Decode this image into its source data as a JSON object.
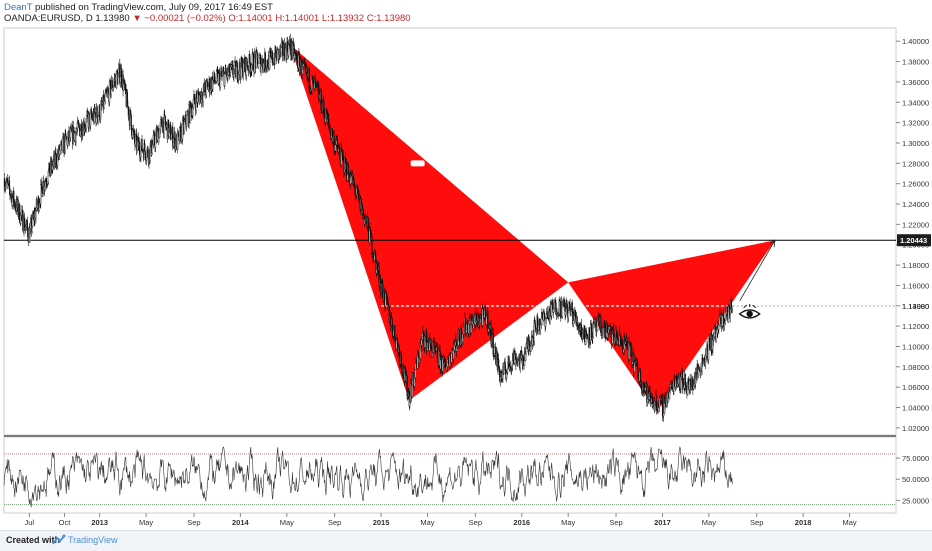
{
  "header": {
    "author": "DeanT",
    "published": " published on TradingView.com, July 09, 2017 16:49 EST",
    "symbol_line": "OANDA:EURUSD, D  1.13980",
    "change": "▼ −0.00021 (−0.02%)",
    "ohlc": " O:1.14001  H:1.14001  L:1.13932  C:1.13980"
  },
  "footer": {
    "created": "Created with",
    "brand": "TradingView"
  },
  "colors": {
    "pattern": "#ff0000",
    "hline": "#000000",
    "rsi_upper": "#c62828",
    "rsi_lower": "#2e7d32"
  },
  "chart_data": {
    "type": "candlestick",
    "price_axis": {
      "ticks": [
        "1.40000",
        "1.38000",
        "1.36000",
        "1.34000",
        "1.32000",
        "1.30000",
        "1.28000",
        "1.26000",
        "1.24000",
        "1.22000",
        "1.20000",
        "1.18000",
        "1.16000",
        "1.14000",
        "1.12000",
        "1.10000",
        "1.08000",
        "1.06000",
        "1.04000",
        "1.02000"
      ],
      "tick_values": [
        1.4,
        1.38,
        1.36,
        1.34,
        1.32,
        1.3,
        1.28,
        1.26,
        1.24,
        1.22,
        1.2,
        1.18,
        1.16,
        1.14,
        1.12,
        1.1,
        1.08,
        1.06,
        1.04,
        1.02
      ],
      "ylim": [
        1.013,
        1.413
      ]
    },
    "time_axis": {
      "labels": [
        "Jul",
        "Oct",
        "2013",
        "May",
        "Sep",
        "2014",
        "May",
        "Sep",
        "2015",
        "May",
        "Sep",
        "2016",
        "May",
        "Sep",
        "2017",
        "May",
        "Sep",
        "2018",
        "May"
      ],
      "times": [
        2012.5,
        2012.75,
        2013.0,
        2013.33,
        2013.67,
        2014.0,
        2014.33,
        2014.67,
        2015.0,
        2015.33,
        2015.67,
        2016.0,
        2016.33,
        2016.67,
        2017.0,
        2017.33,
        2017.67,
        2018.0,
        2018.33
      ],
      "xlim": [
        2012.32,
        2018.66
      ]
    },
    "price_path": [
      [
        2012.32,
        1.265
      ],
      [
        2012.4,
        1.24
      ],
      [
        2012.5,
        1.21
      ],
      [
        2012.6,
        1.26
      ],
      [
        2012.75,
        1.3
      ],
      [
        2012.9,
        1.32
      ],
      [
        2013.0,
        1.33
      ],
      [
        2013.1,
        1.36
      ],
      [
        2013.15,
        1.37
      ],
      [
        2013.25,
        1.3
      ],
      [
        2013.35,
        1.29
      ],
      [
        2013.45,
        1.32
      ],
      [
        2013.55,
        1.3
      ],
      [
        2013.67,
        1.34
      ],
      [
        2013.8,
        1.36
      ],
      [
        2013.95,
        1.37
      ],
      [
        2014.1,
        1.38
      ],
      [
        2014.2,
        1.38
      ],
      [
        2014.35,
        1.395
      ],
      [
        2014.45,
        1.37
      ],
      [
        2014.55,
        1.35
      ],
      [
        2014.67,
        1.3
      ],
      [
        2014.8,
        1.26
      ],
      [
        2014.9,
        1.22
      ],
      [
        2015.0,
        1.16
      ],
      [
        2015.12,
        1.1
      ],
      [
        2015.2,
        1.05
      ],
      [
        2015.3,
        1.11
      ],
      [
        2015.45,
        1.08
      ],
      [
        2015.6,
        1.12
      ],
      [
        2015.75,
        1.13
      ],
      [
        2015.85,
        1.07
      ],
      [
        2015.95,
        1.09
      ],
      [
        2016.0,
        1.085
      ],
      [
        2016.1,
        1.12
      ],
      [
        2016.25,
        1.14
      ],
      [
        2016.35,
        1.135
      ],
      [
        2016.45,
        1.11
      ],
      [
        2016.55,
        1.12
      ],
      [
        2016.75,
        1.1
      ],
      [
        2016.9,
        1.05
      ],
      [
        2017.0,
        1.04
      ],
      [
        2017.1,
        1.07
      ],
      [
        2017.2,
        1.06
      ],
      [
        2017.3,
        1.09
      ],
      [
        2017.4,
        1.12
      ],
      [
        2017.5,
        1.1398
      ]
    ],
    "harmonic_pattern": {
      "points": [
        [
          2014.35,
          1.397
        ],
        [
          2015.2,
          1.047
        ],
        [
          2016.33,
          1.163
        ],
        [
          2016.96,
          1.036
        ],
        [
          2017.8,
          1.2044
        ]
      ],
      "marks": [
        [
          2015.26,
          1.28
        ],
        [
          2016.73,
          1.185
        ]
      ]
    },
    "hlines": [
      {
        "value": 1.20443,
        "label": "1.20443",
        "style": "solid"
      },
      {
        "value": 1.1398,
        "label": "1.13980",
        "style": "dashed",
        "from": 2015.0,
        "to": 2017.5
      }
    ],
    "projection": {
      "from": [
        2017.55,
        1.145
      ],
      "to": [
        2017.8,
        1.2044
      ]
    },
    "eye_annotation": [
      2017.62,
      1.132
    ],
    "rsi": {
      "ticks": [
        "75.0000",
        "50.0000",
        "25.0000"
      ],
      "tick_values": [
        75,
        50,
        25
      ],
      "upper_band": 80,
      "lower_band": 20,
      "ylim": [
        10,
        100
      ]
    }
  }
}
